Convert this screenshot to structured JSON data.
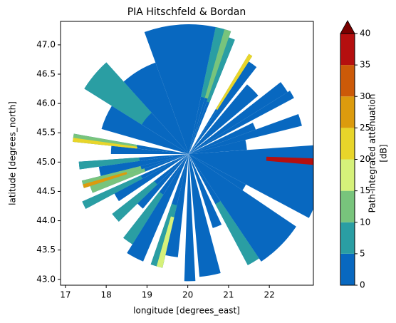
{
  "chart_data": {
    "type": "radar_ppi",
    "title": "PIA Hitschfeld & Bordan",
    "xlabel": "longitude [degrees_east]",
    "ylabel": "latitude [degrees_north]",
    "xlim": [
      16.88,
      23.08
    ],
    "ylim": [
      42.9,
      47.4
    ],
    "xticks": [
      17,
      18,
      19,
      20,
      21,
      22
    ],
    "yticks": [
      {
        "value": 43,
        "label": "43.0"
      },
      43.5,
      {
        "value": 44,
        "label": "44.0"
      },
      44.5,
      {
        "value": 45,
        "label": "45.0"
      },
      45.5,
      {
        "value": 46,
        "label": "46.0"
      },
      46.5,
      {
        "value": 47,
        "label": "47.0"
      }
    ],
    "colorbar": {
      "label": [
        "Path-integrated attenuation",
        "[dB]"
      ],
      "levels": [
        0,
        5,
        10,
        15,
        20,
        25,
        30,
        35,
        40
      ],
      "colors": [
        "#0868c0",
        "#2a9ea3",
        "#78c47c",
        "#d6f17a",
        "#e8d52a",
        "#dc9b0d",
        "#cc5a08",
        "#b50f0f"
      ],
      "extend": "max",
      "over_color": "#7a0000"
    }
  }
}
